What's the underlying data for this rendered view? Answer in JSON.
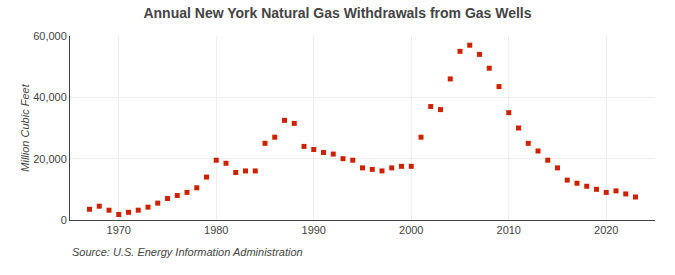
{
  "chart_data": {
    "type": "scatter",
    "title": "Annual New York Natural Gas Withdrawals from Gas Wells",
    "ylabel": "Million Cubic Feet",
    "annotations": [
      "Source: U.S. Energy Information Administration"
    ],
    "x": [
      1967,
      1968,
      1969,
      1970,
      1971,
      1972,
      1973,
      1974,
      1975,
      1976,
      1977,
      1978,
      1979,
      1980,
      1981,
      1982,
      1983,
      1984,
      1985,
      1986,
      1987,
      1988,
      1989,
      1990,
      1991,
      1992,
      1993,
      1994,
      1995,
      1996,
      1997,
      1998,
      1999,
      2000,
      2001,
      2002,
      2003,
      2004,
      2005,
      2006,
      2007,
      2008,
      2009,
      2010,
      2011,
      2012,
      2013,
      2014,
      2015,
      2016,
      2017,
      2018,
      2019,
      2020,
      2021,
      2022,
      2023
    ],
    "values": [
      3500,
      4500,
      3200,
      1800,
      2500,
      3200,
      4200,
      5500,
      7000,
      8000,
      9000,
      10500,
      14000,
      19500,
      18500,
      15500,
      16000,
      16000,
      25000,
      27000,
      32500,
      31500,
      24000,
      23000,
      22000,
      21500,
      20000,
      19500,
      17000,
      16500,
      16000,
      17000,
      17500,
      17500,
      27000,
      37000,
      36000,
      46000,
      55000,
      57000,
      54000,
      49500,
      43500,
      35000,
      30000,
      25000,
      22500,
      19500,
      17000,
      13000,
      12000,
      11000,
      10000,
      9000,
      9500,
      8500,
      7500
    ],
    "color": "#cc2200",
    "marker": "square",
    "xlim": [
      1965,
      2025
    ],
    "xticks": [
      1970,
      1980,
      1990,
      2000,
      2010,
      2020
    ],
    "ylim": [
      0,
      60000
    ],
    "yticks": [
      0,
      {
        "value": 20000,
        "label": "20,000"
      },
      {
        "value": 40000,
        "label": "40,000"
      },
      {
        "value": 60000,
        "label": "60,000"
      }
    ],
    "grid": true
  }
}
